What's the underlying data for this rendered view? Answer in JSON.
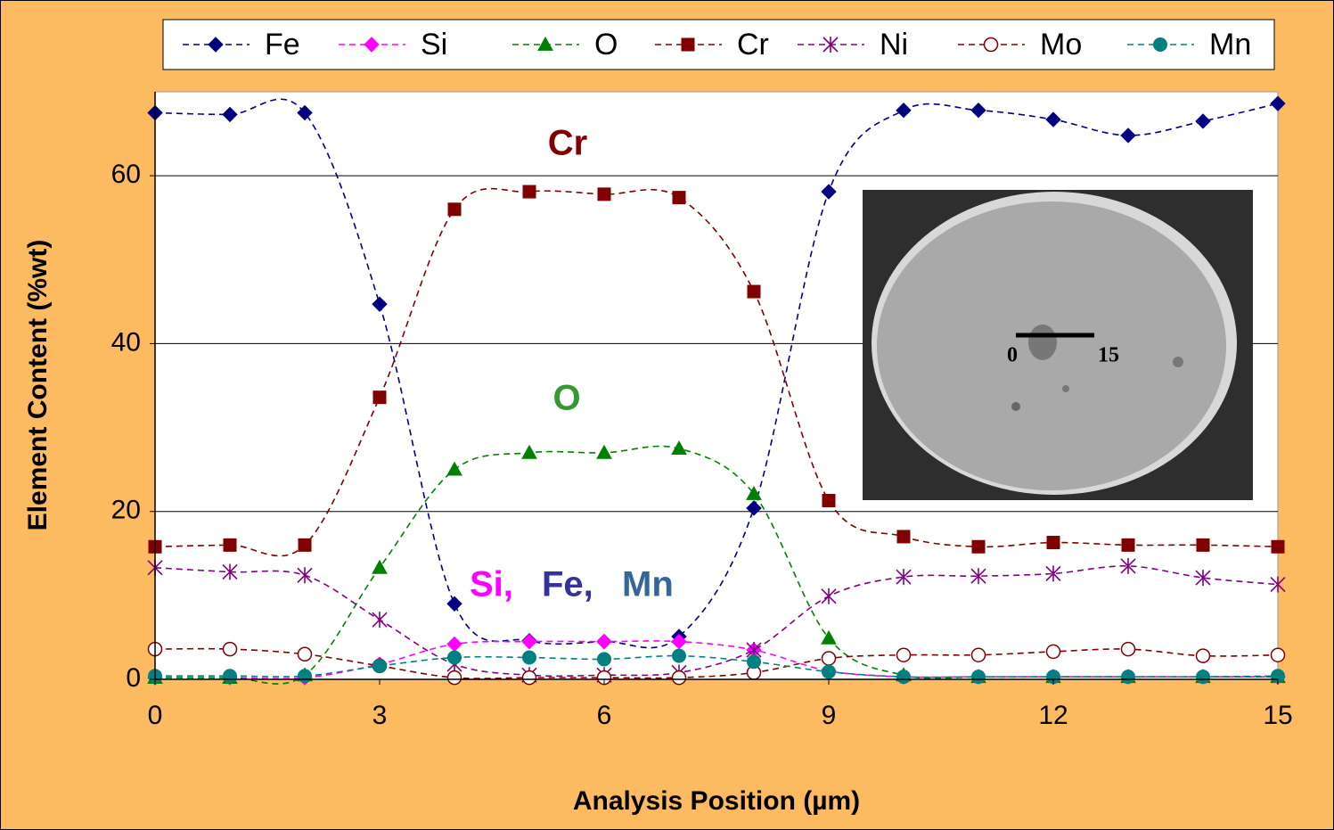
{
  "chart_data": {
    "type": "line",
    "x_label": "Analysis Position (µm)",
    "y_label": "Element Content (%wt)",
    "x": [
      0,
      1,
      2,
      3,
      4,
      5,
      6,
      7,
      8,
      9,
      10,
      11,
      12,
      13,
      14,
      15
    ],
    "xlim": [
      0,
      15
    ],
    "xticks": [
      0,
      3,
      6,
      9,
      12,
      15
    ],
    "ylim": [
      0,
      70
    ],
    "yticks": [
      0,
      20,
      40,
      60
    ],
    "grid": true,
    "legend": "top",
    "series": [
      {
        "name": "Fe",
        "color": "#000080",
        "marker": "diamond",
        "values": [
          67.5,
          67.3,
          67.5,
          44.7,
          9,
          4.6,
          4.5,
          5.1,
          20.4,
          58.1,
          67.8,
          67.8,
          66.7,
          64.8,
          66.5,
          68.6
        ]
      },
      {
        "name": "Si",
        "color": "#ff00ff",
        "marker": "diamond",
        "values": [
          0.2,
          0.2,
          0.2,
          1.8,
          4.2,
          4.5,
          4.5,
          4.5,
          3.5,
          1,
          0.3,
          0.3,
          0.3,
          0.3,
          0.3,
          0.3
        ]
      },
      {
        "name": "O",
        "color": "#008000",
        "marker": "triangle",
        "values": [
          0.2,
          0.2,
          0.5,
          13.3,
          25,
          27,
          27,
          27.5,
          22.1,
          4.9,
          0.5,
          0.3,
          0.3,
          0.3,
          0.3,
          0.3
        ]
      },
      {
        "name": "Cr",
        "color": "#800000",
        "marker": "square",
        "values": [
          15.8,
          16,
          16,
          33.6,
          56,
          58.1,
          57.8,
          57.4,
          46.2,
          21.3,
          17,
          15.8,
          16.3,
          16,
          16,
          15.8
        ]
      },
      {
        "name": "Ni",
        "color": "#800080",
        "marker": "star",
        "values": [
          13.3,
          12.8,
          12.4,
          7.1,
          1.8,
          0.5,
          0.5,
          0.8,
          3.5,
          9.9,
          12.2,
          12.3,
          12.6,
          13.5,
          12.1,
          11.3
        ]
      },
      {
        "name": "Mo",
        "color": "#800000",
        "marker": "open-circle",
        "values": [
          3.6,
          3.6,
          3,
          1.6,
          0.2,
          0.2,
          0.2,
          0.2,
          0.8,
          2.5,
          2.9,
          2.9,
          3.3,
          3.6,
          2.8,
          2.9
        ]
      },
      {
        "name": "Mn",
        "color": "#008080",
        "marker": "circle",
        "values": [
          0.4,
          0.4,
          0.4,
          1.6,
          2.6,
          2.6,
          2.4,
          2.8,
          2.1,
          0.9,
          0.3,
          0.3,
          0.3,
          0.3,
          0.3,
          0.4
        ]
      }
    ],
    "annotations": [
      {
        "text": "Cr",
        "color": "#800000"
      },
      {
        "text": "O",
        "color": "#339933"
      },
      {
        "text": "Si,",
        "color": "#ff00ff"
      },
      {
        "text": "Fe,",
        "color": "#333399"
      },
      {
        "text": "Mn",
        "color": "#336699"
      }
    ],
    "inset": {
      "scale_labels": [
        "0",
        "15"
      ]
    }
  }
}
